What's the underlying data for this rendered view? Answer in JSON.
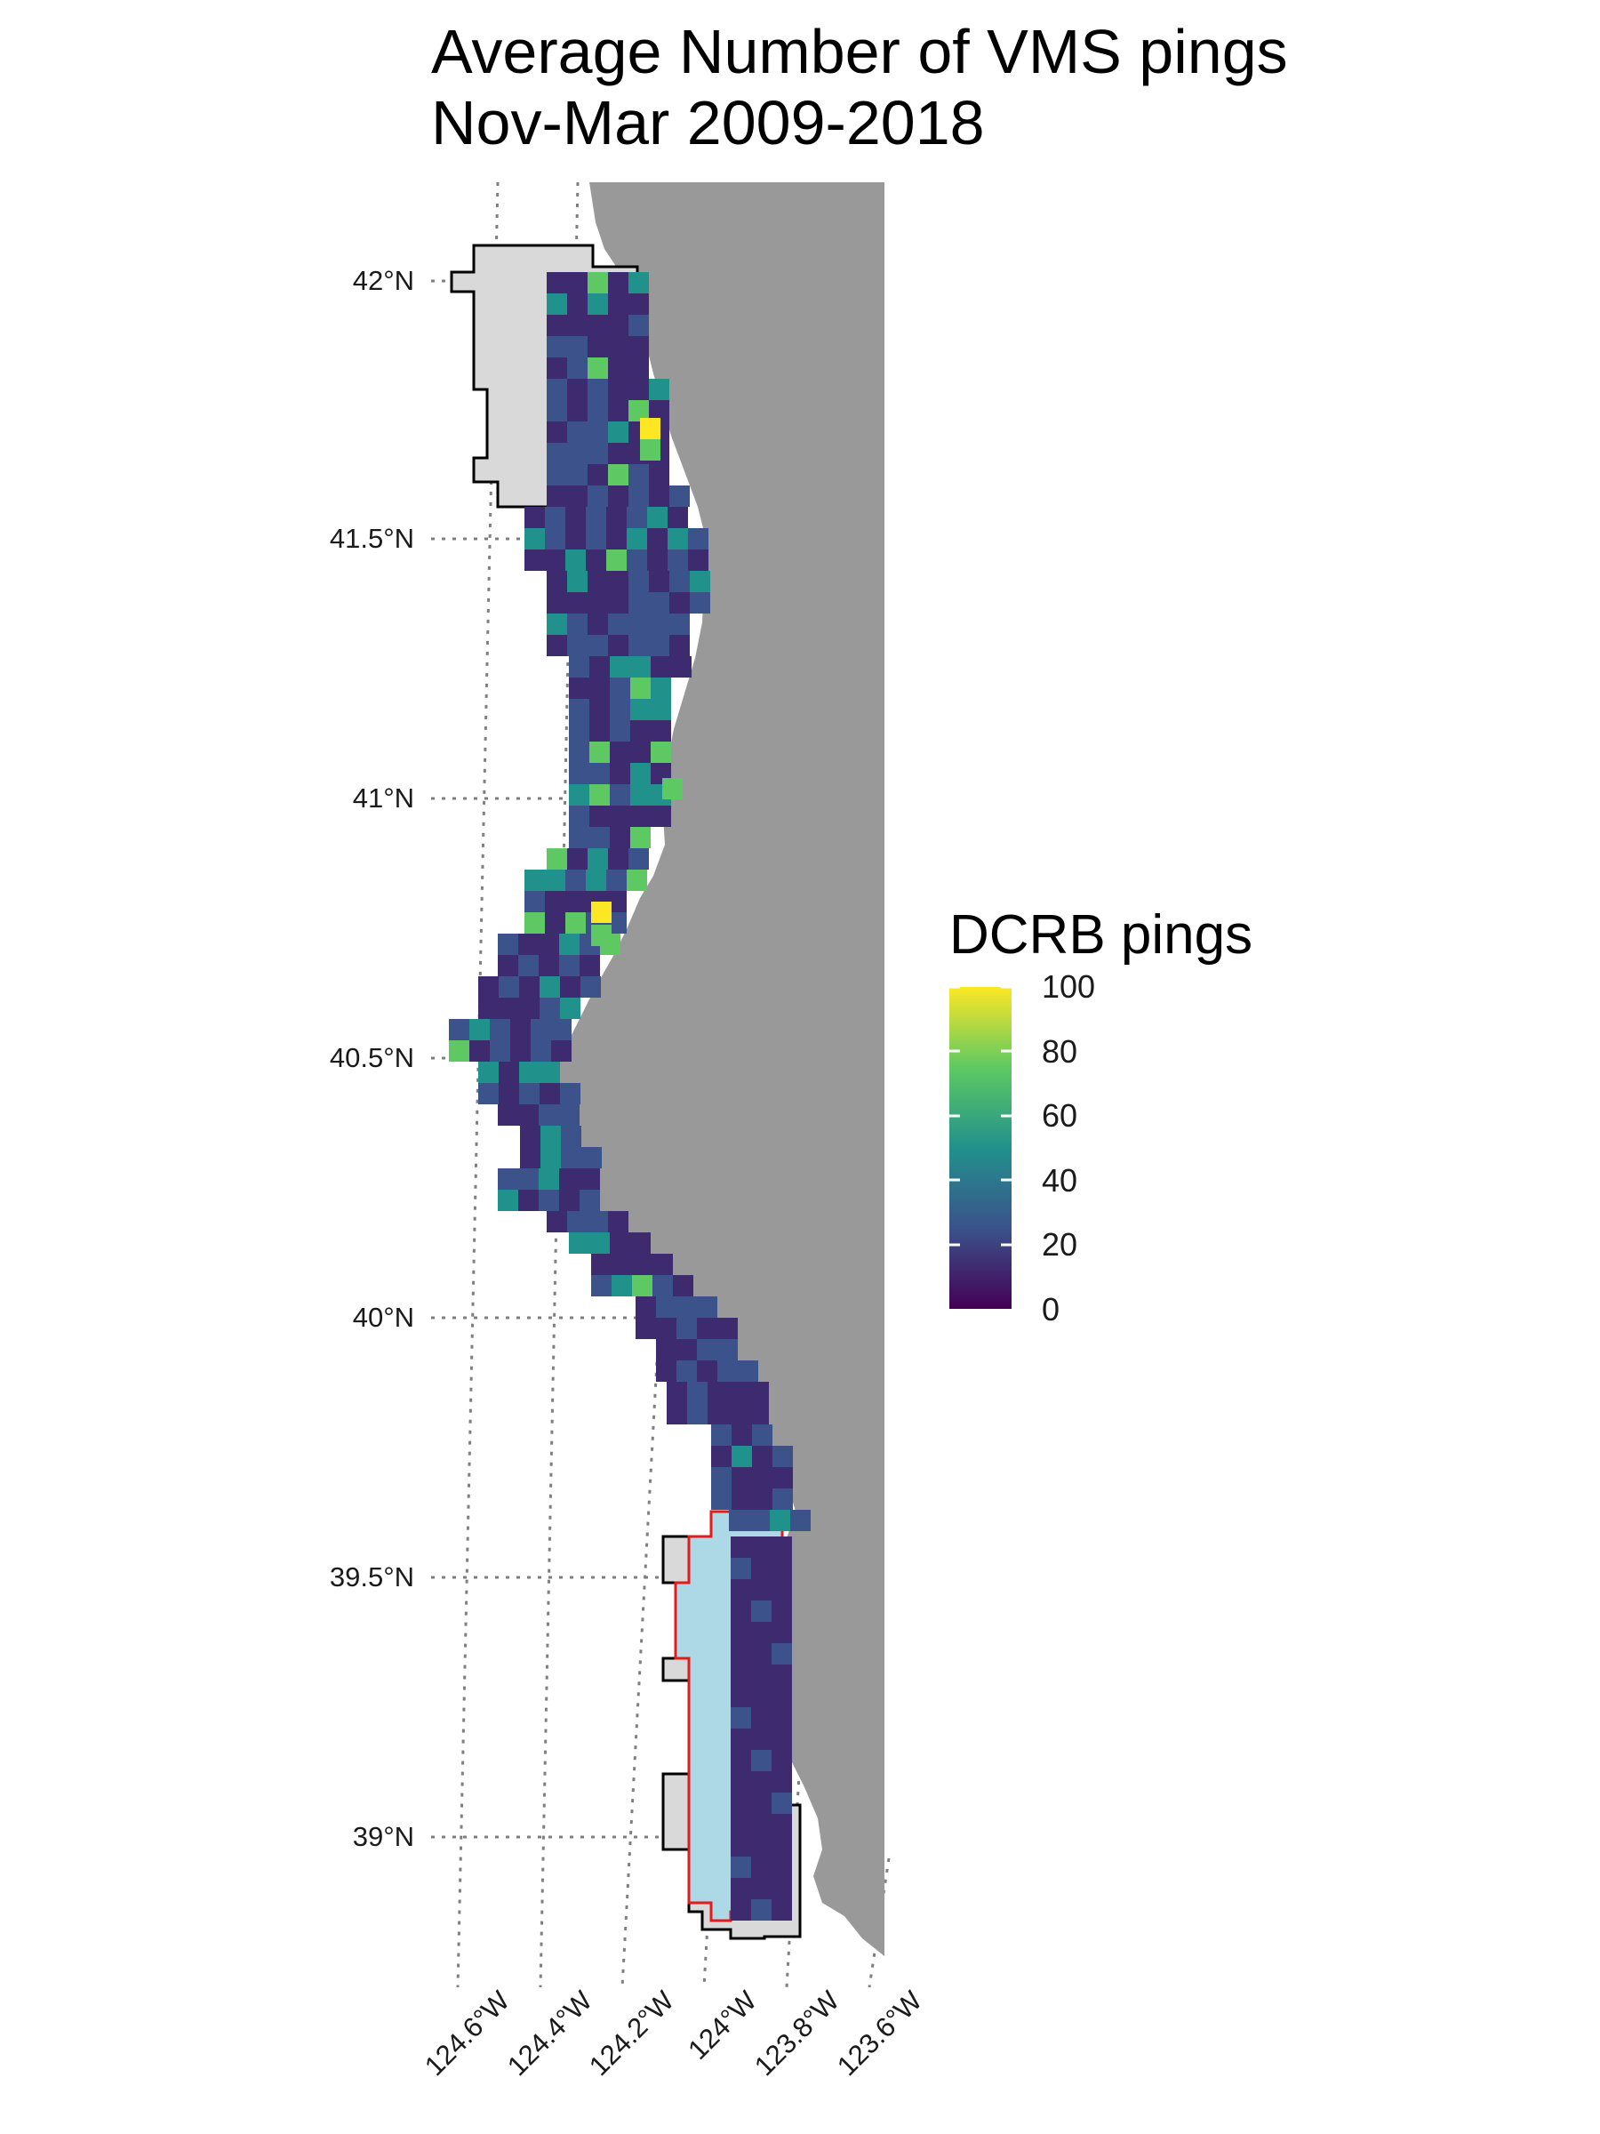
{
  "title_lines": [
    "Average Number of VMS pings",
    "Nov-Mar 2009-2018"
  ],
  "latitude_labels": [
    "42°N",
    "41.5°N",
    "41°N",
    "40.5°N",
    "40°N",
    "39.5°N",
    "39°N"
  ],
  "longitude_labels": [
    "124.6°W",
    "124.4°W",
    "124.2°W",
    "124°W",
    "123.8°W",
    "123.6°W"
  ],
  "legend": {
    "title": "DCRB pings",
    "ticks": [
      "100",
      "80",
      "60",
      "40",
      "20",
      "0"
    ],
    "range": [
      0,
      100
    ],
    "palette": [
      "#440154",
      "#3b528b",
      "#21918c",
      "#5ec962",
      "#fde725"
    ]
  },
  "colors": {
    "land": "#999999",
    "closure_zone": "#d9d9d9",
    "study_zone": "#add8e6",
    "study_zone_outline": "#e41a1c",
    "grid_line": "#7f7f7f"
  }
}
